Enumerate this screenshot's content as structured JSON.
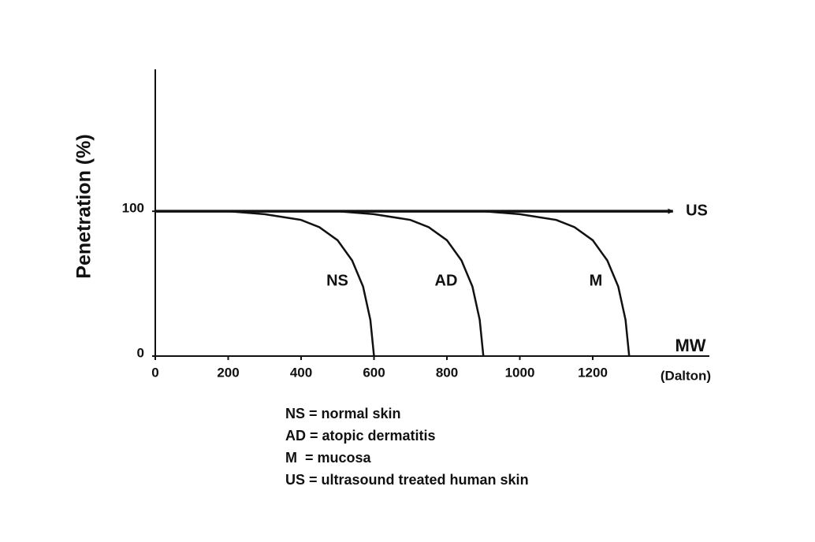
{
  "chart_data": {
    "type": "line",
    "y_label": "Penetration (%)",
    "x_label": "MW",
    "x_unit": "(Dalton)",
    "xlim": [
      0,
      1520
    ],
    "ylim": [
      0,
      198
    ],
    "xticks": [
      0,
      200,
      400,
      600,
      800,
      1000,
      1200
    ],
    "yticks": [
      0,
      100
    ],
    "series": [
      {
        "name": "NS",
        "color": "#111111",
        "x": [
          0,
          200,
          300,
          400,
          450,
          500,
          540,
          570,
          590,
          600
        ],
        "values": [
          100,
          100,
          98,
          94,
          89,
          80,
          66,
          48,
          25,
          0
        ]
      },
      {
        "name": "AD",
        "color": "#111111",
        "x": [
          0,
          500,
          600,
          700,
          750,
          800,
          840,
          870,
          890,
          900
        ],
        "values": [
          100,
          100,
          98,
          94,
          89,
          80,
          66,
          48,
          25,
          0
        ]
      },
      {
        "name": "M",
        "color": "#111111",
        "x": [
          0,
          900,
          1000,
          1100,
          1150,
          1200,
          1240,
          1270,
          1290,
          1300
        ],
        "values": [
          100,
          100,
          98,
          94,
          89,
          80,
          66,
          48,
          25,
          0
        ]
      },
      {
        "name": "US",
        "color": "#111111",
        "x": [
          0,
          1420
        ],
        "values": [
          100,
          100
        ],
        "arrow": true
      }
    ],
    "notes": [
      "NS = normal skin",
      "AD = atopic dermatitis",
      "M  = mucosa",
      "US = ultrasound treated human skin"
    ]
  }
}
